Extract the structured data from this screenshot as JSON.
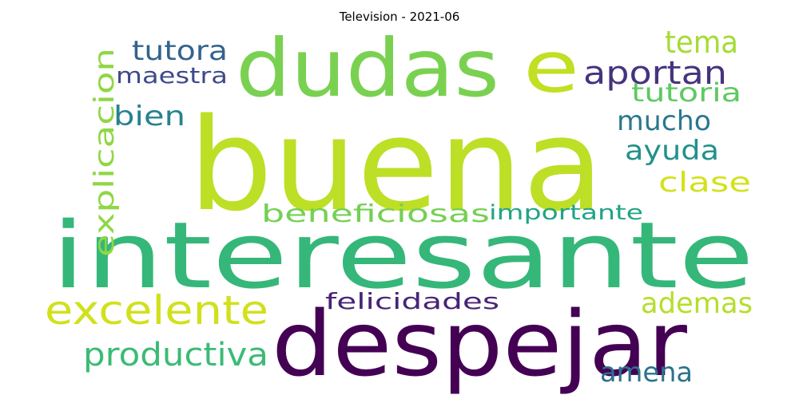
{
  "figure": {
    "title": "Television - 2021-06"
  },
  "words": [
    {
      "id": "buena",
      "text": "buena",
      "color": "#bddf26"
    },
    {
      "id": "interesante",
      "text": "interesante",
      "color": "#35b779"
    },
    {
      "id": "despejar",
      "text": "despejar",
      "color": "#440154"
    },
    {
      "id": "dudas",
      "text": "dudas",
      "color": "#7ad151"
    },
    {
      "id": "e",
      "text": "e",
      "color": "#c2df23"
    },
    {
      "id": "excelente",
      "text": "excelente",
      "color": "#d0e11c"
    },
    {
      "id": "productiva",
      "text": "productiva",
      "color": "#3bbb75"
    },
    {
      "id": "explicacion",
      "text": "explicacion",
      "color": "#8fd744"
    },
    {
      "id": "tutora",
      "text": "tutora",
      "color": "#33638d"
    },
    {
      "id": "maestra",
      "text": "maestra",
      "color": "#3e4a89"
    },
    {
      "id": "bien",
      "text": "bien",
      "color": "#26828e"
    },
    {
      "id": "aportan",
      "text": "aportan",
      "color": "#46337e"
    },
    {
      "id": "tema",
      "text": "tema",
      "color": "#a5db36"
    },
    {
      "id": "tutoria",
      "text": "tutoria",
      "color": "#5ec962"
    },
    {
      "id": "mucho",
      "text": "mucho",
      "color": "#2a788e"
    },
    {
      "id": "ayuda",
      "text": "ayuda",
      "color": "#21918c"
    },
    {
      "id": "clase",
      "text": "clase",
      "color": "#d2e21b"
    },
    {
      "id": "beneficiosas",
      "text": "beneficiosas",
      "color": "#75d054"
    },
    {
      "id": "importante",
      "text": "importante",
      "color": "#20a486"
    },
    {
      "id": "felicidades",
      "text": "felicidades",
      "color": "#482475"
    },
    {
      "id": "ademas",
      "text": "ademas",
      "color": "#b5de2b"
    },
    {
      "id": "amena",
      "text": "amena",
      "color": "#2c728e"
    }
  ]
}
